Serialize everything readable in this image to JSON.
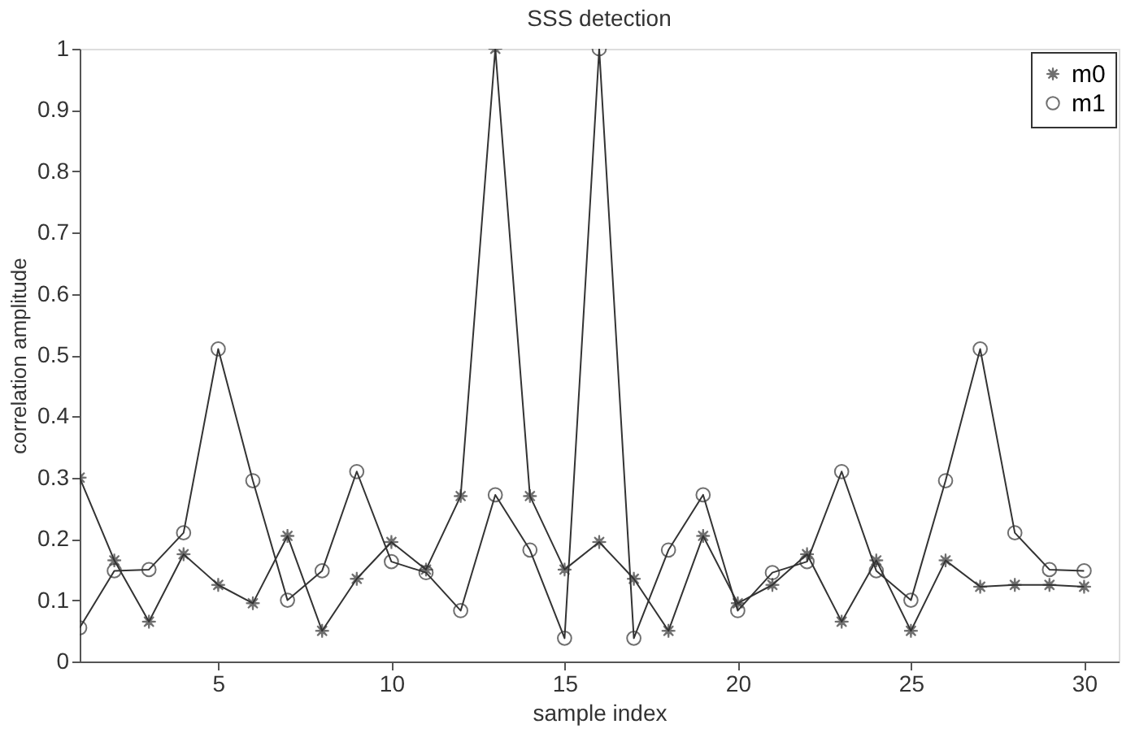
{
  "chart_data": {
    "type": "line",
    "title": "SSS detection",
    "xlabel": "sample index",
    "ylabel": "correlation amplitude",
    "x": [
      1,
      2,
      3,
      4,
      5,
      6,
      7,
      8,
      9,
      10,
      11,
      12,
      13,
      14,
      15,
      16,
      17,
      18,
      19,
      20,
      21,
      22,
      23,
      24,
      25,
      26,
      27,
      28,
      29,
      30
    ],
    "series": [
      {
        "name": "m0",
        "color": "#333333",
        "marker": "star",
        "values": [
          0.3,
          0.165,
          0.065,
          0.175,
          0.125,
          0.095,
          0.205,
          0.05,
          0.135,
          0.195,
          0.15,
          0.27,
          1.0,
          0.27,
          0.15,
          0.195,
          0.135,
          0.05,
          0.205,
          0.095,
          0.125,
          0.175,
          0.065,
          0.165,
          0.05,
          0.165,
          0.122,
          0.125,
          0.125,
          0.122
        ]
      },
      {
        "name": "m1",
        "color": "#333333",
        "marker": "circle",
        "values": [
          0.055,
          0.148,
          0.15,
          0.21,
          0.51,
          0.295,
          0.1,
          0.148,
          0.31,
          0.163,
          0.145,
          0.083,
          0.272,
          0.182,
          0.038,
          1.0,
          0.038,
          0.182,
          0.272,
          0.083,
          0.145,
          0.163,
          0.31,
          0.148,
          0.1,
          0.295,
          0.51,
          0.21,
          0.15,
          0.148
        ]
      }
    ],
    "xlim": [
      1,
      31
    ],
    "xticks": [
      5,
      10,
      15,
      20,
      25,
      30
    ],
    "ylim": [
      0,
      1
    ],
    "yticks": [
      0,
      0.1,
      0.2,
      0.3,
      0.4,
      0.5,
      0.6,
      0.7,
      0.8,
      0.9,
      1
    ],
    "grid": false,
    "legend": "top right",
    "line_style": "solid"
  }
}
